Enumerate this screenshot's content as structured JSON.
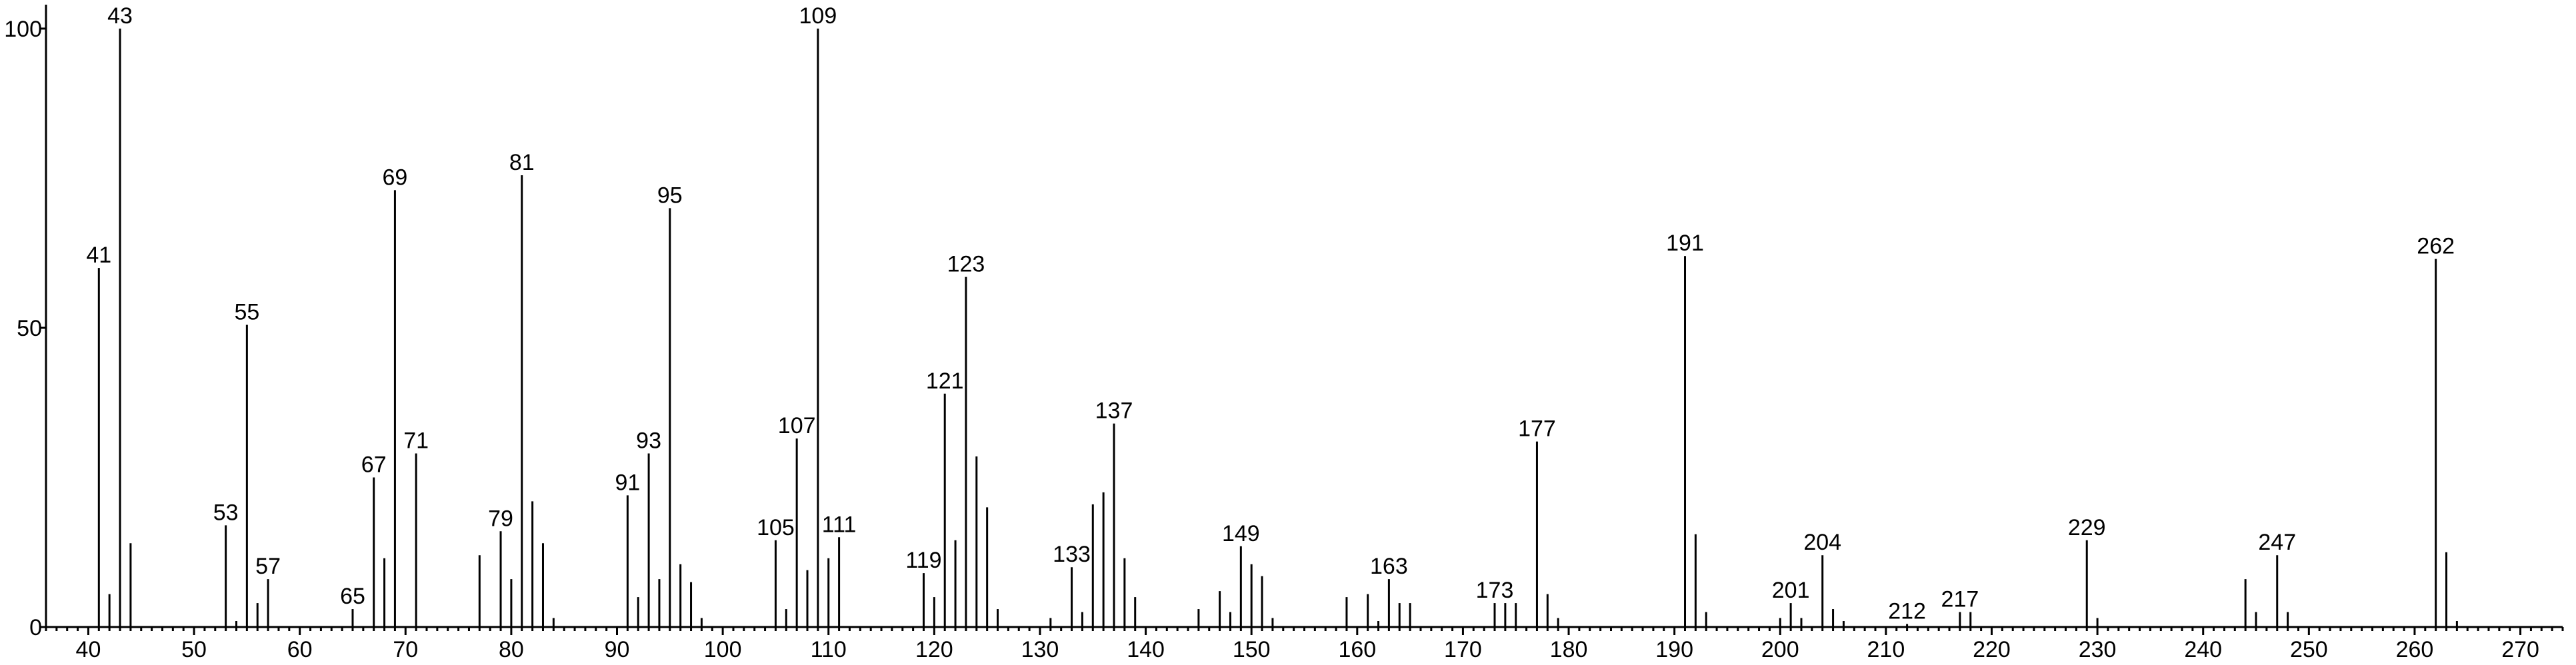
{
  "chart_data": {
    "type": "stem",
    "color": "#000000",
    "x": [
      41,
      42,
      43,
      44,
      53,
      54,
      55,
      56,
      57,
      65,
      67,
      68,
      69,
      71,
      77,
      79,
      80,
      81,
      82,
      83,
      84,
      91,
      92,
      93,
      94,
      95,
      96,
      97,
      98,
      105,
      106,
      107,
      108,
      109,
      110,
      111,
      119,
      120,
      121,
      122,
      123,
      124,
      125,
      126,
      131,
      133,
      134,
      135,
      136,
      137,
      138,
      139,
      145,
      147,
      148,
      149,
      150,
      151,
      152,
      159,
      161,
      162,
      163,
      164,
      165,
      173,
      174,
      175,
      177,
      178,
      179,
      191,
      192,
      193,
      200,
      201,
      202,
      204,
      205,
      206,
      212,
      217,
      218,
      229,
      230,
      244,
      245,
      247,
      248,
      262,
      263,
      264
    ],
    "values": [
      60,
      5.5,
      100,
      14,
      17,
      1,
      50.5,
      4,
      8,
      3,
      25,
      11.5,
      73,
      29,
      12,
      16,
      8,
      75.5,
      21,
      14,
      1.5,
      22,
      5,
      29,
      8,
      70,
      10.5,
      7.5,
      1.5,
      14.5,
      3,
      31.5,
      9.5,
      100,
      11.5,
      15,
      9,
      5,
      39,
      14.5,
      58.5,
      28.5,
      20,
      3,
      1.5,
      10,
      2.5,
      20.5,
      22.5,
      34,
      11.5,
      5,
      3,
      6,
      2.5,
      13.5,
      10.5,
      8.5,
      1.5,
      5,
      5.5,
      1,
      8,
      4,
      4,
      4,
      4,
      4,
      31,
      5.5,
      1.5,
      62,
      15.5,
      2.5,
      1.5,
      4,
      1.5,
      12,
      3,
      1,
      0.5,
      2.5,
      2.5,
      14.5,
      1.5,
      8,
      2.5,
      12,
      2.5,
      61.5,
      12.5,
      1
    ],
    "labels": [
      "41",
      null,
      "43",
      null,
      "53",
      null,
      "55",
      null,
      "57",
      "65",
      "67",
      null,
      "69",
      "71",
      null,
      "79",
      null,
      "81",
      null,
      null,
      null,
      "91",
      null,
      "93",
      null,
      "95",
      null,
      null,
      null,
      "105",
      null,
      "107",
      null,
      "109",
      null,
      "111",
      "119",
      null,
      "121",
      null,
      "123",
      null,
      null,
      null,
      null,
      "133",
      null,
      null,
      null,
      "137",
      null,
      null,
      null,
      null,
      null,
      "149",
      null,
      null,
      null,
      null,
      null,
      null,
      "163",
      null,
      null,
      "173",
      null,
      null,
      "177",
      null,
      null,
      "191",
      null,
      null,
      null,
      "201",
      null,
      "204",
      null,
      null,
      "212",
      "217",
      null,
      "229",
      null,
      null,
      null,
      "247",
      null,
      "262",
      null,
      null
    ],
    "xlim": [
      36,
      274
    ],
    "ylim": [
      0,
      104
    ],
    "xticks": [
      40,
      50,
      60,
      70,
      80,
      90,
      100,
      110,
      120,
      130,
      140,
      150,
      160,
      170,
      180,
      190,
      200,
      210,
      220,
      230,
      240,
      250,
      260,
      270
    ],
    "yticks": [
      0,
      50,
      100
    ]
  }
}
